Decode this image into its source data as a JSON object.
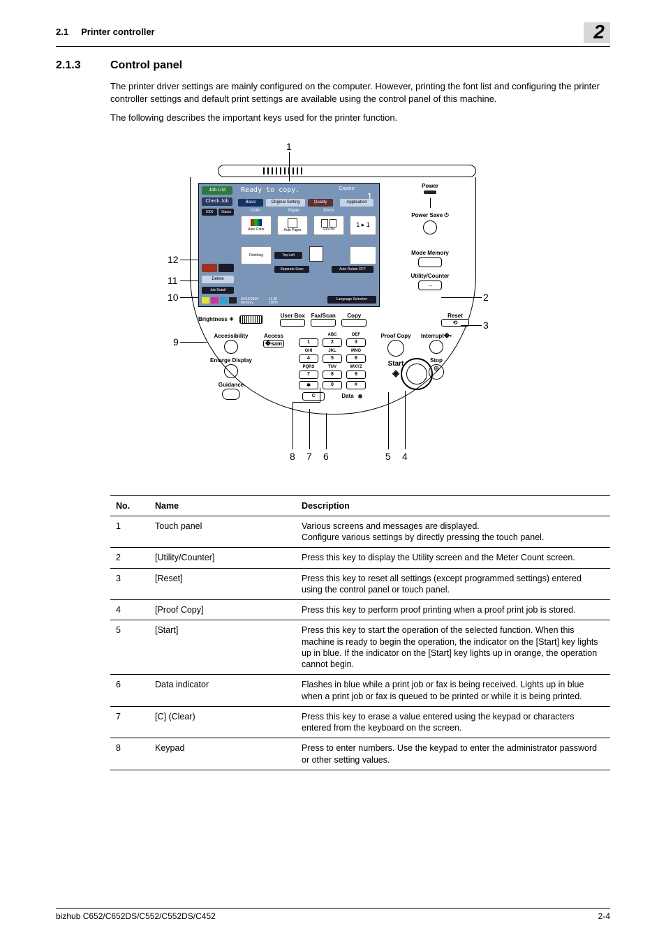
{
  "header": {
    "section_ref": "2.1",
    "section_name": "Printer controller",
    "chapter_num": "2"
  },
  "section": {
    "number": "2.1.3",
    "title": "Control panel"
  },
  "paragraphs": {
    "p1": "The printer driver settings are mainly configured on the computer. However, printing the font list and configuring the printer controller settings and default print settings are available using the control panel of this machine.",
    "p2": "The following describes the important keys used for the printer function."
  },
  "screen": {
    "ready": "Ready to copy.",
    "copies_label": "Copies:",
    "copies_val": "1",
    "job_list": "Job List",
    "check_job": "Check Job",
    "tabs": {
      "basic": "Basic",
      "orig": "Original Setting",
      "quality": "Quality",
      "app": "Application"
    },
    "labels": {
      "color": "Color",
      "paper": "Paper",
      "zoom": "Zoom",
      "auto_color": "Auto Color",
      "auto_paper": "Auto Paper",
      "z100": "100.0%"
    },
    "row2": {
      "top_left": "Top Left",
      "sep_scan": "Separate Scan",
      "rotate": "Auto Rotate OFF"
    },
    "delete": "Delete",
    "date": "04/16/2009",
    "mem": "Memory",
    "time": "11:30",
    "pct": "100%",
    "lang": "Language Selection",
    "side": {
      "a": "1000",
      "b": "Status"
    },
    "finishing": "Finishing",
    "job_detail": "Job Detail"
  },
  "right_col": {
    "power": "Power",
    "power_save": "Power Save",
    "mode_memory": "Mode Memory",
    "utility": "Utility/Counter"
  },
  "mid_row": {
    "brightness": "Brightness",
    "user_box": "User Box",
    "fax_scan": "Fax/Scan",
    "copy": "Copy",
    "reset": "Reset"
  },
  "lower": {
    "accessibility": "Accessibility",
    "enlarge": "Enlarge Display",
    "guidance": "Guidance",
    "access": "Access",
    "proof": "Proof Copy",
    "interrupt": "Interrupt",
    "stop": "Stop",
    "start": "Start",
    "clear": "C",
    "data": "Data",
    "klab": {
      "abc": "ABC",
      "def": "DEF",
      "ghi": "GHI",
      "jkl": "JKL",
      "mno": "MNO",
      "pqrs": "PQRS",
      "tuv": "TUV",
      "wxyz": "WXYZ"
    },
    "keys": {
      "k1": "1",
      "k2": "2",
      "k3": "3",
      "k4": "4",
      "k5": "5",
      "k6": "6",
      "k7": "7",
      "k8": "8",
      "k9": "9",
      "kstar": "✱",
      "k0": "0",
      "khash": "#"
    }
  },
  "callouts": {
    "c1": "1",
    "c2": "2",
    "c3": "3",
    "c4": "4",
    "c5": "5",
    "c6": "6",
    "c7": "7",
    "c8": "8",
    "c9": "9",
    "c10": "10",
    "c11": "11",
    "c12": "12"
  },
  "table": {
    "headers": {
      "no": "No.",
      "name": "Name",
      "desc": "Description"
    },
    "rows": [
      {
        "no": "1",
        "name": "Touch panel",
        "desc": "Various screens and messages are displayed.\nConfigure various settings by directly pressing the touch panel."
      },
      {
        "no": "2",
        "name": "[Utility/Counter]",
        "desc": "Press this key to display the Utility screen and the Meter Count screen."
      },
      {
        "no": "3",
        "name": "[Reset]",
        "desc": "Press this key to reset all settings (except programmed settings) entered using the control panel or touch panel."
      },
      {
        "no": "4",
        "name": "[Proof Copy]",
        "desc": "Press this key to perform proof printing when a proof print job is stored."
      },
      {
        "no": "5",
        "name": "[Start]",
        "desc": "Press this key to start the operation of the selected function. When this machine is ready to begin the operation, the indicator on the [Start] key lights up in blue. If the indicator on the [Start] key lights up in orange, the operation cannot begin."
      },
      {
        "no": "6",
        "name": "Data indicator",
        "desc": "Flashes in blue while a print job or fax is being received. Lights up in blue when a print job or fax is queued to be printed or while it is being printed."
      },
      {
        "no": "7",
        "name": "[C] (Clear)",
        "desc": "Press this key to erase a value entered using the keypad or characters entered from the keyboard on the screen."
      },
      {
        "no": "8",
        "name": "Keypad",
        "desc": "Press to enter numbers. Use the keypad to enter the administrator password or other setting values."
      }
    ]
  },
  "footer": {
    "model": "bizhub C652/C652DS/C552/C552DS/C452",
    "page": "2-4"
  },
  "style": {
    "screen_bg": "#7a95b7",
    "header_gray": "#d8d8d8"
  }
}
